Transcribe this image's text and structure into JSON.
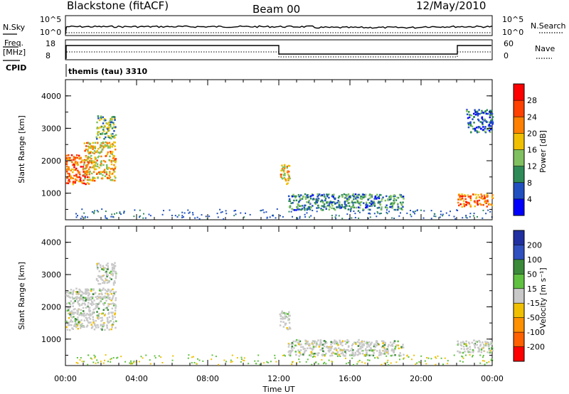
{
  "header": {
    "station": "Blackstone (fitACF)",
    "beam": "Beam 00",
    "date": "12/May/2010"
  },
  "panels": {
    "noise": {
      "left_label": "N.Sky",
      "left_ticks": [
        "10^5",
        "10^0"
      ],
      "right_ticks": [
        "10^5",
        "10^0"
      ],
      "right_label": "N.Search"
    },
    "freq": {
      "left_label_line1": "Freq.",
      "left_label_line2": "[MHz]",
      "left_ticks": [
        "18",
        "8"
      ],
      "right_ticks": [
        "60",
        "0"
      ],
      "right_label": "Nave"
    },
    "cpid": {
      "label": "CPID",
      "program": "themis (tau) 3310"
    }
  },
  "axes": {
    "ylabel": "Slant Range [km]",
    "yticks": [
      "4000",
      "3000",
      "2000",
      "1000"
    ],
    "xlabel": "Time UT",
    "xticks": [
      "00:00",
      "04:00",
      "08:00",
      "12:00",
      "16:00",
      "20:00",
      "00:00"
    ]
  },
  "colorbars": {
    "power": {
      "label": "Power [dB]",
      "ticks": [
        "28",
        "24",
        "20",
        "16",
        "12",
        "8",
        "4"
      ],
      "colors": [
        "#ff0000",
        "#ff4000",
        "#ff8000",
        "#f0c000",
        "#80c060",
        "#2e8b57",
        "#2050c0",
        "#0000ff"
      ]
    },
    "velocity": {
      "label": "Velocity [m s⁻¹]",
      "ticks": [
        "200",
        "100",
        "50",
        "15",
        "-15",
        "-50",
        "-100",
        "-200"
      ],
      "colors": [
        "#2030a0",
        "#3050c0",
        "#3a8a3a",
        "#60c040",
        "#c8c8c8",
        "#f0c000",
        "#ff9000",
        "#ff6000",
        "#ff0000"
      ]
    }
  },
  "chart_data": [
    {
      "type": "heatmap",
      "title": "Power",
      "x_range": [
        "00:00",
        "24:00"
      ],
      "ylim": [
        180,
        4500
      ],
      "clim": [
        0,
        30
      ],
      "regions": [
        {
          "t_start": 0.0,
          "t_end": 1.3,
          "r_start": 1300,
          "r_end": 2200,
          "value": 24
        },
        {
          "t_start": 1.0,
          "t_end": 2.8,
          "r_start": 1400,
          "r_end": 2600,
          "value": 18
        },
        {
          "t_start": 1.7,
          "t_end": 2.8,
          "r_start": 2700,
          "r_end": 3400,
          "value": 12
        },
        {
          "t_start": 12.0,
          "t_end": 12.6,
          "r_start": 1300,
          "r_end": 1900,
          "value": 18
        },
        {
          "t_start": 12.5,
          "t_end": 19.0,
          "r_start": 500,
          "r_end": 1000,
          "value": 8
        },
        {
          "t_start": 22.0,
          "t_end": 24.0,
          "r_start": 600,
          "r_end": 1000,
          "value": 22
        },
        {
          "t_start": 22.5,
          "t_end": 24.0,
          "r_start": 2900,
          "r_end": 3600,
          "value": 6
        }
      ]
    },
    {
      "type": "heatmap",
      "title": "Velocity",
      "x_range": [
        "00:00",
        "24:00"
      ],
      "ylim": [
        180,
        4500
      ],
      "clim": [
        -200,
        200
      ],
      "regions": [
        {
          "t_start": 0.0,
          "t_end": 2.8,
          "r_start": 1300,
          "r_end": 2600,
          "value": 0
        },
        {
          "t_start": 1.7,
          "t_end": 2.8,
          "r_start": 2700,
          "r_end": 3400,
          "value": 0
        },
        {
          "t_start": 12.0,
          "t_end": 12.6,
          "r_start": 1300,
          "r_end": 1900,
          "value": 0
        },
        {
          "t_start": 12.5,
          "t_end": 19.0,
          "r_start": 500,
          "r_end": 1000,
          "value": 0
        },
        {
          "t_start": 22.0,
          "t_end": 24.0,
          "r_start": 600,
          "r_end": 1000,
          "value": 0
        }
      ]
    }
  ]
}
